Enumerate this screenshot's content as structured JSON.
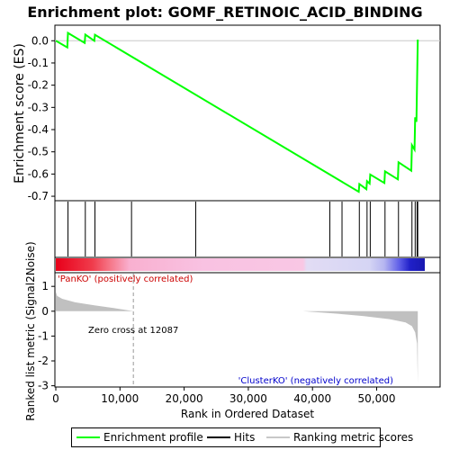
{
  "chart_data": [
    {
      "type": "line",
      "title": "Enrichment plot: GOMF_RETINOIC_ACID_BINDING",
      "ylabel": "Enrichment score (ES)",
      "xlim": [
        0,
        57500
      ],
      "ylim": [
        -0.72,
        0.07
      ],
      "yticks": [
        "0.0",
        "-0.1",
        "-0.2",
        "-0.3",
        "-0.4",
        "-0.5",
        "-0.6",
        "-0.7"
      ],
      "ytick_values": [
        0.0,
        -0.1,
        -0.2,
        -0.3,
        -0.4,
        -0.5,
        -0.6,
        -0.7
      ],
      "series": [
        {
          "name": "Enrichment profile",
          "color": "#00ff00",
          "x": [
            0,
            1800,
            1900,
            4500,
            4600,
            6000,
            6100,
            47200,
            47300,
            48400,
            48500,
            48900,
            49000,
            51200,
            51300,
            53300,
            53400,
            55400,
            55500,
            55900,
            56000,
            56200,
            56300,
            56400
          ],
          "y": [
            0.0,
            -0.03,
            0.035,
            -0.01,
            0.028,
            0.0,
            0.027,
            -0.68,
            -0.645,
            -0.668,
            -0.632,
            -0.643,
            -0.602,
            -0.64,
            -0.588,
            -0.624,
            -0.547,
            -0.585,
            -0.47,
            -0.49,
            -0.345,
            -0.365,
            -0.19,
            0.005
          ]
        }
      ]
    },
    {
      "type": "scatter",
      "name": "hits",
      "hit_positions": [
        1900,
        4600,
        6100,
        11800,
        21800,
        42700,
        44600,
        47300,
        48500,
        49000,
        51300,
        53400,
        55500,
        56000,
        56300,
        56400
      ],
      "xlim": [
        0,
        57500
      ]
    },
    {
      "type": "area",
      "ylabel": "Ranked list metric (Signal2Noise)",
      "xlabel": "Rank in Ordered Dataset",
      "xlim": [
        0,
        57500
      ],
      "ylim": [
        -3.05,
        1.55
      ],
      "yticks": [
        "1",
        "0",
        "-1",
        "-2",
        "-3"
      ],
      "ytick_values": [
        1,
        0,
        -1,
        -2,
        -3
      ],
      "xticks": [
        "0",
        "10,000",
        "20,000",
        "30,000",
        "40,000",
        "50,000"
      ],
      "xtick_values": [
        0,
        10000,
        20000,
        30000,
        40000,
        50000
      ],
      "metric_x": [
        0,
        200,
        1000,
        3000,
        6000,
        9000,
        12087,
        38500,
        44000,
        48000,
        52000,
        54500,
        55500,
        56000,
        56300,
        56400
      ],
      "metric_y": [
        0.78,
        0.62,
        0.5,
        0.36,
        0.24,
        0.13,
        0.0,
        0.0,
        -0.1,
        -0.2,
        -0.32,
        -0.45,
        -0.6,
        -0.85,
        -1.3,
        -2.9
      ],
      "zero_cross_label": "Zero cross at 12087",
      "zero_cross_x": 12087,
      "pos_label": "'PanKO' (positively correlated)",
      "neg_label": "'ClusterKO' (negatively correlated)"
    }
  ],
  "legend": {
    "items": [
      {
        "label": "Enrichment profile",
        "color": "#00ff00"
      },
      {
        "label": "Hits",
        "color": "#000000"
      },
      {
        "label": "Ranking metric scores",
        "color": "#c8c8c8"
      }
    ]
  },
  "colors": {
    "profile": "#00ff00",
    "hits": "#000000",
    "metric_fill": "#c0c0c0",
    "pos_label": "#cc0000",
    "neg_label": "#0000cc",
    "zero_line": "#999999"
  }
}
